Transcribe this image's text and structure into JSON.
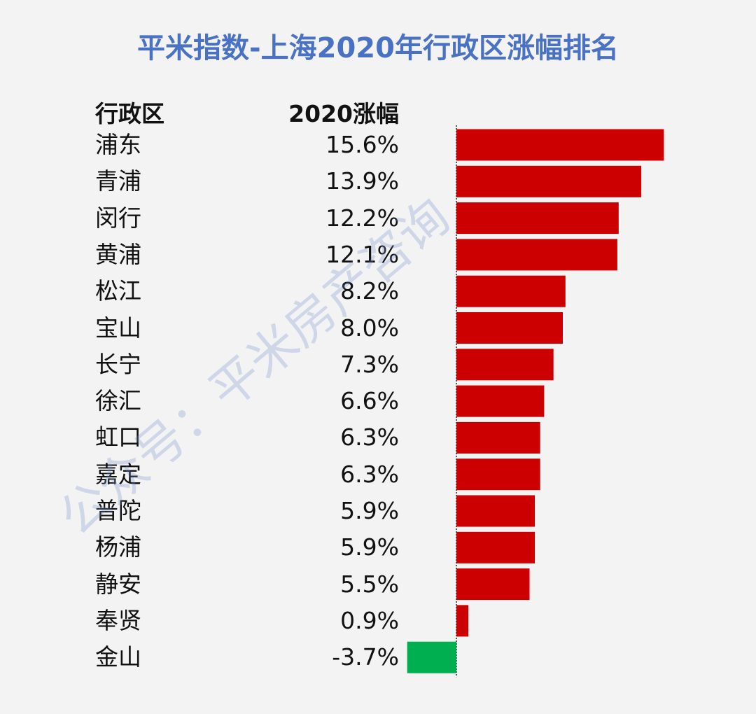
{
  "title": "平米指数-上海2020年行政区涨幅排名",
  "headers": {
    "district": "行政区",
    "change": "2020涨幅"
  },
  "watermark": "公众号：平米房产咨询",
  "colors": {
    "title": "#4a72c4",
    "positive": "#cc0000",
    "negative": "#00b050",
    "background": "#f3f3f3"
  },
  "chart_data": {
    "type": "bar",
    "orientation": "horizontal",
    "categories": [
      "浦东",
      "青浦",
      "闵行",
      "黄浦",
      "松江",
      "宝山",
      "长宁",
      "徐汇",
      "虹口",
      "嘉定",
      "普陀",
      "杨浦",
      "静安",
      "奉贤",
      "金山"
    ],
    "values": [
      15.6,
      13.9,
      12.2,
      12.1,
      8.2,
      8.0,
      7.3,
      6.6,
      6.3,
      6.3,
      5.9,
      5.9,
      5.5,
      0.9,
      -3.7
    ],
    "labels": [
      "15.6%",
      "13.9%",
      "12.2%",
      "12.1%",
      "8.2%",
      "8.0%",
      "7.3%",
      "6.6%",
      "6.3%",
      "6.3%",
      "5.9%",
      "5.9%",
      "5.5%",
      "0.9%",
      "-3.7%"
    ],
    "unit": "%",
    "zero_line": "dotted"
  }
}
